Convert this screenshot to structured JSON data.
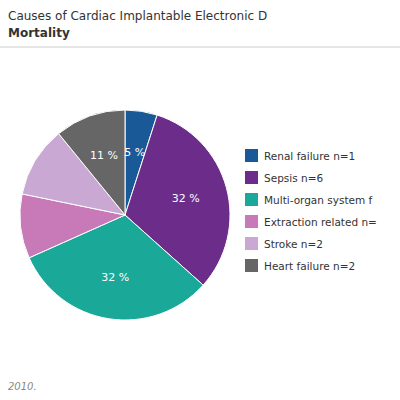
{
  "chart_data": {
    "type": "pie",
    "title": "Causes of Cardiac Implantable Electronic D",
    "subtitle": "Mortality",
    "annotations": [
      "2010."
    ],
    "categories": [
      "Renal failure n=1",
      "Sepsis n=6",
      "Multi-organ system f",
      "Extraction related n=",
      "Stroke n=2",
      "Heart failure n=2"
    ],
    "values": [
      5,
      32,
      32,
      10,
      11,
      11
    ],
    "value_labels": [
      "5 %",
      "32 %",
      "32 %",
      null,
      null,
      "11 %"
    ],
    "colors": [
      "#1a5998",
      "#6b2c8a",
      "#1aa898",
      "#c87ab8",
      "#c9a8d4",
      "#666666"
    ],
    "data_labels": true,
    "legend": "right"
  }
}
